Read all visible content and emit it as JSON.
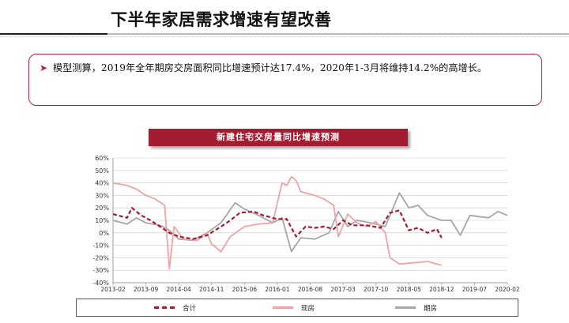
{
  "slide": {
    "title": "下半年家居需求增速有望改善",
    "note": "模型测算，2019年全年期房交房面积同比增速预计达17.4%，2020年1-3月将维持14.2%的高增长。"
  },
  "chart_data": {
    "type": "line",
    "title": "新建住宅交房量同比增速预测",
    "ylim": [
      -40,
      60
    ],
    "ytick_labels": [
      "60%",
      "50%",
      "40%",
      "30%",
      "20%",
      "10%",
      "0%",
      "-10%",
      "-20%",
      "-30%",
      "-40%"
    ],
    "x_start": "2013-02",
    "x_end": "2020-02",
    "xtick_labels": [
      "2013-02",
      "2013-09",
      "2014-04",
      "2014-11",
      "2015-06",
      "2016-01",
      "2016-08",
      "2017-03",
      "2017-10",
      "2018-05",
      "2018-12",
      "2019-07",
      "2020-02"
    ],
    "legend_position": "bottom",
    "series": [
      {
        "name": "合计",
        "color": "#a41c32",
        "style": "dashed",
        "points": [
          [
            "2013-02",
            15
          ],
          [
            "2013-05",
            12
          ],
          [
            "2013-06",
            20
          ],
          [
            "2013-08",
            14
          ],
          [
            "2013-10",
            10
          ],
          [
            "2013-12",
            5
          ],
          [
            "2014-02",
            0
          ],
          [
            "2014-04",
            -3
          ],
          [
            "2014-07",
            -5
          ],
          [
            "2014-10",
            -2
          ],
          [
            "2015-01",
            5
          ],
          [
            "2015-03",
            10
          ],
          [
            "2015-05",
            16
          ],
          [
            "2015-08",
            17
          ],
          [
            "2015-10",
            14
          ],
          [
            "2016-01",
            11
          ],
          [
            "2016-03",
            11
          ],
          [
            "2016-05",
            -3
          ],
          [
            "2016-07",
            5
          ],
          [
            "2016-09",
            4
          ],
          [
            "2016-11",
            5
          ],
          [
            "2017-01",
            3
          ],
          [
            "2017-03",
            10
          ],
          [
            "2017-05",
            6
          ],
          [
            "2017-08",
            6
          ],
          [
            "2017-11",
            4
          ],
          [
            "2018-01",
            16
          ],
          [
            "2018-03",
            18
          ],
          [
            "2018-05",
            2
          ],
          [
            "2018-07",
            4
          ],
          [
            "2018-09",
            0
          ],
          [
            "2018-11",
            3
          ],
          [
            "2018-12",
            -4
          ]
        ]
      },
      {
        "name": "现房",
        "color": "#f2a3a6",
        "style": "solid",
        "points": [
          [
            "2013-02",
            40
          ],
          [
            "2013-05",
            38
          ],
          [
            "2013-07",
            35
          ],
          [
            "2013-09",
            30
          ],
          [
            "2013-11",
            27
          ],
          [
            "2014-01",
            22
          ],
          [
            "2014-02",
            -29
          ],
          [
            "2014-03",
            5
          ],
          [
            "2014-05",
            -5
          ],
          [
            "2014-08",
            -6
          ],
          [
            "2014-10",
            0
          ],
          [
            "2014-11",
            -9
          ],
          [
            "2015-01",
            -15
          ],
          [
            "2015-03",
            -3
          ],
          [
            "2015-06",
            5
          ],
          [
            "2015-09",
            7
          ],
          [
            "2015-12",
            8
          ],
          [
            "2016-02",
            40
          ],
          [
            "2016-03",
            38
          ],
          [
            "2016-04",
            45
          ],
          [
            "2016-05",
            42
          ],
          [
            "2016-06",
            33
          ],
          [
            "2016-09",
            30
          ],
          [
            "2016-11",
            27
          ],
          [
            "2017-01",
            22
          ],
          [
            "2017-02",
            -3
          ],
          [
            "2017-04",
            15
          ],
          [
            "2017-06",
            8
          ],
          [
            "2017-08",
            5
          ],
          [
            "2017-10",
            9
          ],
          [
            "2017-12",
            0
          ],
          [
            "2018-01",
            -20
          ],
          [
            "2018-03",
            -25
          ],
          [
            "2018-06",
            -24
          ],
          [
            "2018-09",
            -23
          ],
          [
            "2018-12",
            -26
          ]
        ]
      },
      {
        "name": "期房",
        "color": "#a6a6a6",
        "style": "solid",
        "points": [
          [
            "2013-02",
            10
          ],
          [
            "2013-05",
            7
          ],
          [
            "2013-07",
            12
          ],
          [
            "2013-09",
            8
          ],
          [
            "2013-12",
            6
          ],
          [
            "2014-02",
            2
          ],
          [
            "2014-04",
            -5
          ],
          [
            "2014-07",
            -6
          ],
          [
            "2014-10",
            0
          ],
          [
            "2015-01",
            8
          ],
          [
            "2015-04",
            24
          ],
          [
            "2015-06",
            19
          ],
          [
            "2015-09",
            14
          ],
          [
            "2015-12",
            8
          ],
          [
            "2016-02",
            12
          ],
          [
            "2016-04",
            -15
          ],
          [
            "2016-06",
            -4
          ],
          [
            "2016-09",
            -5
          ],
          [
            "2016-12",
            0
          ],
          [
            "2017-02",
            17
          ],
          [
            "2017-04",
            5
          ],
          [
            "2017-06",
            10
          ],
          [
            "2017-09",
            8
          ],
          [
            "2017-12",
            5
          ],
          [
            "2018-03",
            32
          ],
          [
            "2018-05",
            20
          ],
          [
            "2018-07",
            22
          ],
          [
            "2018-09",
            14
          ],
          [
            "2018-12",
            10
          ],
          [
            "2019-02",
            10
          ],
          [
            "2019-04",
            -2
          ],
          [
            "2019-06",
            14
          ],
          [
            "2019-08",
            13
          ],
          [
            "2019-10",
            12
          ],
          [
            "2019-12",
            17
          ],
          [
            "2020-02",
            14
          ]
        ]
      }
    ]
  }
}
